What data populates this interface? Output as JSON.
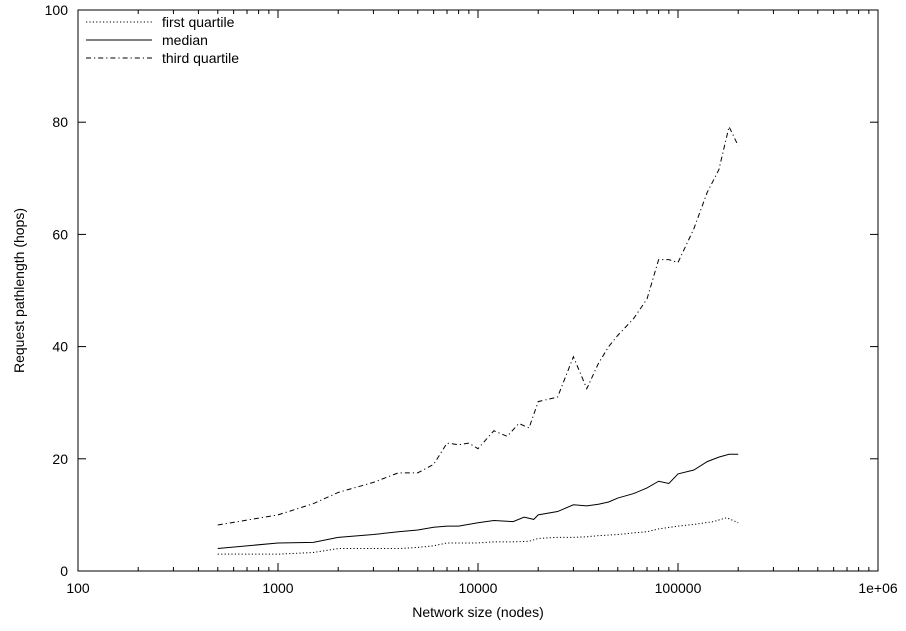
{
  "chart_data": {
    "type": "line",
    "title": "",
    "xlabel": "Network size (nodes)",
    "ylabel": "Request pathlength (hops)",
    "x_scale": "log",
    "xlim": [
      100,
      1000000
    ],
    "ylim": [
      0,
      100
    ],
    "x_ticks": [
      {
        "value": 100,
        "label": "100"
      },
      {
        "value": 1000,
        "label": "1000"
      },
      {
        "value": 10000,
        "label": "10000"
      },
      {
        "value": 100000,
        "label": "100000"
      },
      {
        "value": 1000000,
        "label": "1e+06"
      }
    ],
    "y_ticks": [
      {
        "value": 0,
        "label": "0"
      },
      {
        "value": 20,
        "label": "20"
      },
      {
        "value": 40,
        "label": "40"
      },
      {
        "value": 60,
        "label": "60"
      },
      {
        "value": 80,
        "label": "80"
      },
      {
        "value": 100,
        "label": "100"
      }
    ],
    "grid": false,
    "legend_position": "top-left",
    "series": [
      {
        "name": "first quartile",
        "line_style": "dotted",
        "color": "#000000",
        "points": [
          [
            500,
            3
          ],
          [
            1000,
            3
          ],
          [
            1500,
            3.3
          ],
          [
            2000,
            4
          ],
          [
            3000,
            4
          ],
          [
            4000,
            4
          ],
          [
            5000,
            4.2
          ],
          [
            6000,
            4.5
          ],
          [
            7000,
            5
          ],
          [
            8000,
            5
          ],
          [
            10000,
            5
          ],
          [
            12000,
            5.2
          ],
          [
            15000,
            5.2
          ],
          [
            18000,
            5.3
          ],
          [
            20000,
            5.8
          ],
          [
            25000,
            6
          ],
          [
            30000,
            6
          ],
          [
            35000,
            6.1
          ],
          [
            40000,
            6.3
          ],
          [
            50000,
            6.5
          ],
          [
            60000,
            6.8
          ],
          [
            70000,
            7
          ],
          [
            80000,
            7.5
          ],
          [
            100000,
            8
          ],
          [
            120000,
            8.3
          ],
          [
            150000,
            8.8
          ],
          [
            175000,
            9.5
          ],
          [
            200000,
            8.6
          ]
        ]
      },
      {
        "name": "median",
        "line_style": "solid",
        "color": "#000000",
        "points": [
          [
            500,
            4
          ],
          [
            1000,
            5
          ],
          [
            1500,
            5.1
          ],
          [
            2000,
            6
          ],
          [
            3000,
            6.5
          ],
          [
            4000,
            7
          ],
          [
            5000,
            7.3
          ],
          [
            6000,
            7.8
          ],
          [
            7000,
            8
          ],
          [
            8000,
            8
          ],
          [
            10000,
            8.6
          ],
          [
            12000,
            9
          ],
          [
            15000,
            8.8
          ],
          [
            17000,
            9.6
          ],
          [
            19000,
            9.2
          ],
          [
            20000,
            10
          ],
          [
            25000,
            10.6
          ],
          [
            30000,
            11.8
          ],
          [
            35000,
            11.6
          ],
          [
            40000,
            11.9
          ],
          [
            45000,
            12.3
          ],
          [
            50000,
            13
          ],
          [
            60000,
            13.8
          ],
          [
            70000,
            14.8
          ],
          [
            80000,
            16
          ],
          [
            90000,
            15.6
          ],
          [
            100000,
            17.3
          ],
          [
            120000,
            18
          ],
          [
            140000,
            19.5
          ],
          [
            160000,
            20.3
          ],
          [
            180000,
            20.8
          ],
          [
            200000,
            20.8
          ]
        ]
      },
      {
        "name": "third quartile",
        "line_style": "dashdot",
        "color": "#000000",
        "points": [
          [
            500,
            8.2
          ],
          [
            1000,
            10
          ],
          [
            1500,
            12
          ],
          [
            2000,
            14
          ],
          [
            3000,
            15.8
          ],
          [
            4000,
            17.5
          ],
          [
            5000,
            17.5
          ],
          [
            6000,
            19
          ],
          [
            7000,
            22.8
          ],
          [
            8000,
            22.5
          ],
          [
            9000,
            22.8
          ],
          [
            10000,
            21.8
          ],
          [
            12000,
            25
          ],
          [
            14000,
            24
          ],
          [
            16000,
            26.3
          ],
          [
            18000,
            25.5
          ],
          [
            20000,
            30.2
          ],
          [
            25000,
            31
          ],
          [
            30000,
            38.2
          ],
          [
            35000,
            32.5
          ],
          [
            40000,
            37
          ],
          [
            45000,
            40
          ],
          [
            50000,
            42
          ],
          [
            60000,
            45
          ],
          [
            70000,
            48.5
          ],
          [
            80000,
            55.5
          ],
          [
            90000,
            55.5
          ],
          [
            100000,
            55
          ],
          [
            120000,
            61
          ],
          [
            140000,
            67.5
          ],
          [
            160000,
            71.5
          ],
          [
            180000,
            79.2
          ],
          [
            200000,
            75.8
          ]
        ]
      }
    ]
  }
}
